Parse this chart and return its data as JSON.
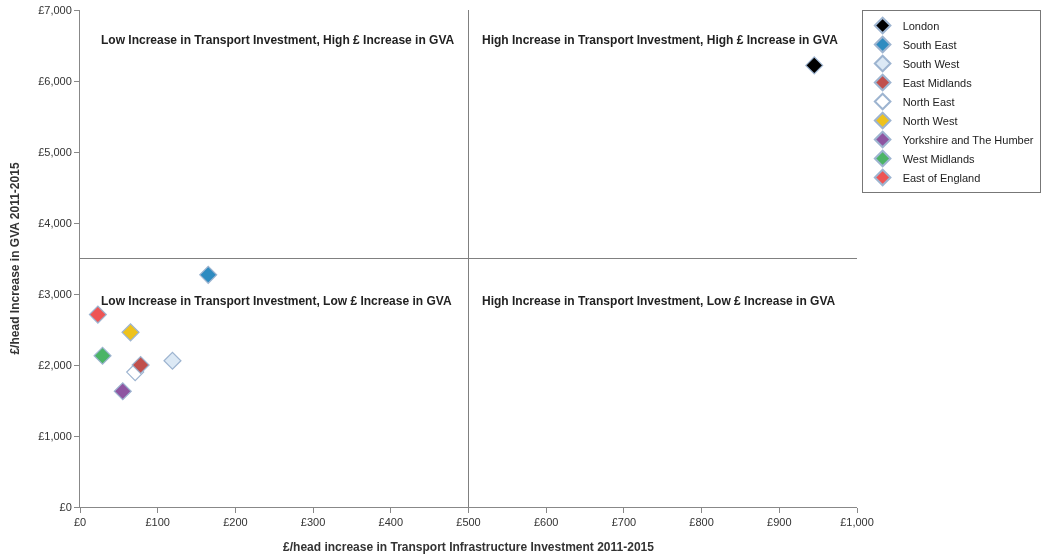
{
  "chart_data": {
    "type": "scatter",
    "xlabel": "£/head increase in Transport Infrastructure Investment 2011-2015",
    "ylabel": "£/head Increase in GVA 2011-2015",
    "marker": "diamond",
    "legend": "right",
    "xlim": [
      0,
      1000
    ],
    "ylim": [
      0,
      7000
    ],
    "xticks": [
      {
        "value": 0,
        "label": "£0"
      },
      {
        "value": 100,
        "label": "£100"
      },
      {
        "value": 200,
        "label": "£200"
      },
      {
        "value": 300,
        "label": "£300"
      },
      {
        "value": 400,
        "label": "£400"
      },
      {
        "value": 500,
        "label": "£500"
      },
      {
        "value": 600,
        "label": "£600"
      },
      {
        "value": 700,
        "label": "£700"
      },
      {
        "value": 800,
        "label": "£800"
      },
      {
        "value": 900,
        "label": "£900"
      },
      {
        "value": 1000,
        "label": "£1,000"
      }
    ],
    "yticks": [
      {
        "value": 0,
        "label": "£0"
      },
      {
        "value": 1000,
        "label": "£1,000"
      },
      {
        "value": 2000,
        "label": "£2,000"
      },
      {
        "value": 3000,
        "label": "£3,000"
      },
      {
        "value": 4000,
        "label": "£4,000"
      },
      {
        "value": 5000,
        "label": "£5,000"
      },
      {
        "value": 6000,
        "label": "£6,000"
      },
      {
        "value": 7000,
        "label": "£7,000"
      }
    ],
    "ref_lines": [
      {
        "axis": "x",
        "value": 500,
        "color": "#808080"
      },
      {
        "axis": "y",
        "value": 3500,
        "color": "#808080"
      }
    ],
    "annotations": [
      "Low Increase in Transport Investment, High £ Increase in GVA",
      "High Increase in Transport Investment, High £ Increase in GVA",
      "Low Increase in Transport Investment, Low £ Increase in GVA",
      "High Increase in Transport Investment, Low £ Increase in GVA"
    ],
    "series": [
      {
        "name": "London",
        "color": "#000000",
        "x": [
          945
        ],
        "values": [
          6220
        ]
      },
      {
        "name": "South East",
        "color": "#2e8bc0",
        "x": [
          165
        ],
        "values": [
          3270
        ]
      },
      {
        "name": "South West",
        "color": "#dce9f5",
        "x": [
          119
        ],
        "values": [
          2060
        ]
      },
      {
        "name": "East Midlands",
        "color": "#c0504d",
        "x": [
          78
        ],
        "values": [
          2000
        ]
      },
      {
        "name": "North East",
        "color": "#ffffff",
        "x": [
          71
        ],
        "values": [
          1900
        ]
      },
      {
        "name": "North West",
        "color": "#eec21c",
        "x": [
          65
        ],
        "values": [
          2460
        ]
      },
      {
        "name": "Yorkshire and The Humber",
        "color": "#8e55a1",
        "x": [
          55
        ],
        "values": [
          1630
        ]
      },
      {
        "name": "West Midlands",
        "color": "#4bb466",
        "x": [
          29
        ],
        "values": [
          2130
        ]
      },
      {
        "name": "East of England",
        "color": "#ee5555",
        "x": [
          23
        ],
        "values": [
          2710
        ]
      }
    ]
  }
}
